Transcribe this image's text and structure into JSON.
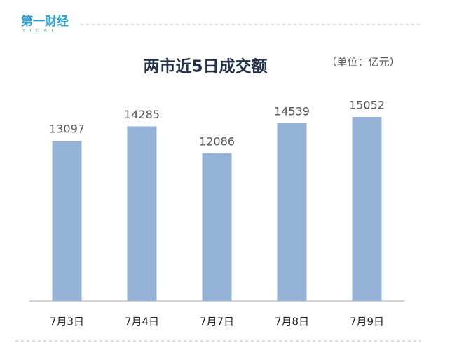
{
  "logo": {
    "text": "第一财经",
    "subtext": "YICAI"
  },
  "chart_data": {
    "type": "bar",
    "title": "两市近5日成交额",
    "unit": "（单位：亿元）",
    "categories": [
      "7月3日",
      "7月4日",
      "7月7日",
      "7月8日",
      "7月9日"
    ],
    "values": [
      13097,
      14285,
      12086,
      14539,
      15052
    ],
    "color": "#95b3d7"
  }
}
